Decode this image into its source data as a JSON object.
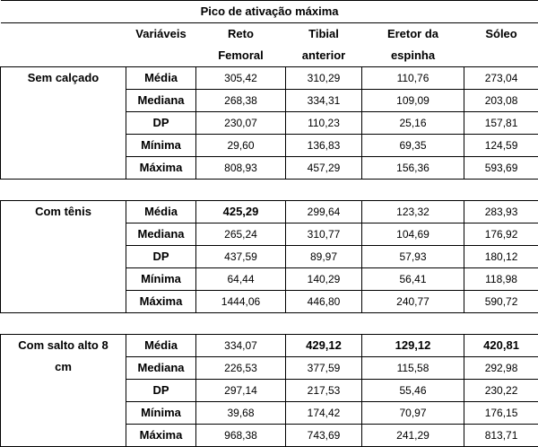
{
  "title": "Pico de ativação máxima",
  "header": {
    "stat": "Variáveis",
    "columns": [
      [
        "Reto",
        "Femoral"
      ],
      [
        "Tibial",
        "anterior"
      ],
      [
        "Eretor da",
        "espinha"
      ],
      [
        "Sóleo"
      ]
    ]
  },
  "groups": [
    {
      "label": [
        "Sem calçado"
      ],
      "rows": [
        {
          "stat": "Média",
          "values": [
            "305,42",
            "310,29",
            "110,76",
            "273,04"
          ]
        },
        {
          "stat": "Mediana",
          "values": [
            "268,38",
            "334,31",
            "109,09",
            "203,08"
          ]
        },
        {
          "stat": "DP",
          "values": [
            "230,07",
            "110,23",
            "25,16",
            "157,81"
          ]
        },
        {
          "stat": "Mínima",
          "values": [
            "29,60",
            "136,83",
            "69,35",
            "124,59"
          ]
        },
        {
          "stat": "Máxima",
          "values": [
            "808,93",
            "457,29",
            "156,36",
            "593,69"
          ]
        }
      ]
    },
    {
      "label": [
        "Com tênis"
      ],
      "rows": [
        {
          "stat": "Média",
          "values": [
            "425,29",
            "299,64",
            "123,32",
            "283,93"
          ],
          "bold": [
            0
          ]
        },
        {
          "stat": "Mediana",
          "values": [
            "265,24",
            "310,77",
            "104,69",
            "176,92"
          ]
        },
        {
          "stat": "DP",
          "values": [
            "437,59",
            "89,97",
            "57,93",
            "180,12"
          ]
        },
        {
          "stat": "Mínima",
          "values": [
            "64,44",
            "140,29",
            "56,41",
            "118,98"
          ]
        },
        {
          "stat": "Máxima",
          "values": [
            "1444,06",
            "446,80",
            "240,77",
            "590,72"
          ]
        }
      ]
    },
    {
      "label": [
        "Com salto alto 8",
        "cm"
      ],
      "rows": [
        {
          "stat": "Média",
          "values": [
            "334,07",
            "429,12",
            "129,12",
            "420,81"
          ],
          "bold": [
            1,
            2,
            3
          ]
        },
        {
          "stat": "Mediana",
          "values": [
            "226,53",
            "377,59",
            "115,58",
            "292,98"
          ]
        },
        {
          "stat": "DP",
          "values": [
            "297,14",
            "217,53",
            "55,46",
            "230,22"
          ]
        },
        {
          "stat": "Mínima",
          "values": [
            "39,68",
            "174,42",
            "70,97",
            "176,15"
          ]
        },
        {
          "stat": "Máxima",
          "values": [
            "968,38",
            "743,69",
            "241,29",
            "813,71"
          ]
        }
      ]
    }
  ]
}
